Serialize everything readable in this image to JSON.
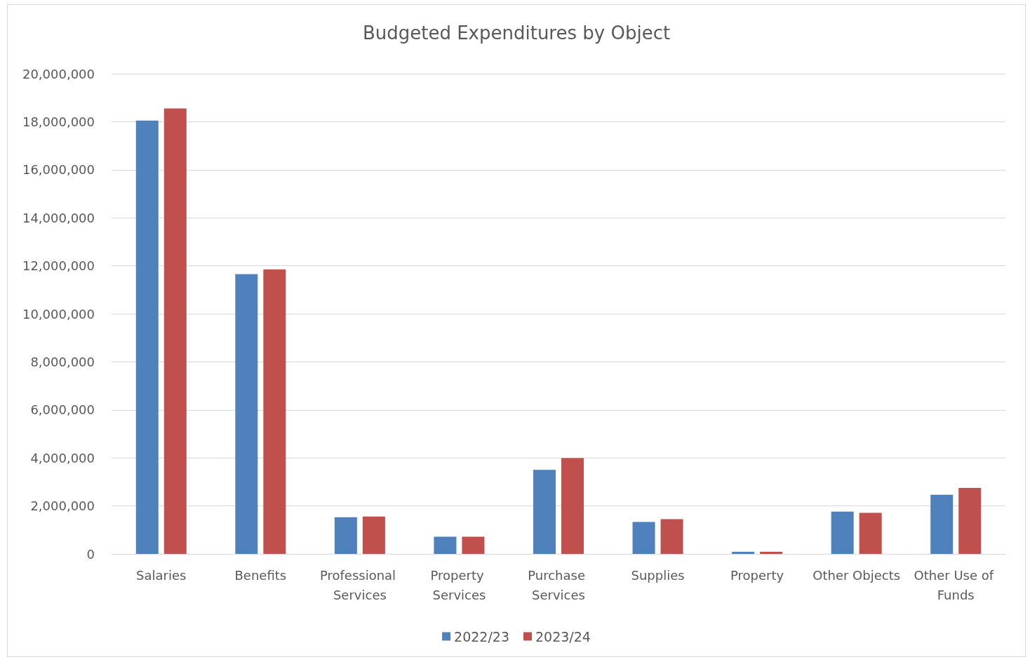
{
  "chart_data": {
    "type": "bar",
    "title": "Budgeted Expenditures by Object",
    "categories": [
      "Salaries",
      "Benefits",
      "Professional Services",
      "Property Services",
      "Purchase Services",
      "Supplies",
      "Property",
      "Other Objects",
      "Other Use of Funds"
    ],
    "series": [
      {
        "name": "2022/23",
        "color": "#4f81bd",
        "values": [
          18050000,
          11650000,
          1530000,
          720000,
          3500000,
          1330000,
          90000,
          1760000,
          2460000
        ]
      },
      {
        "name": "2023/24",
        "color": "#c0504d",
        "values": [
          18550000,
          11850000,
          1560000,
          720000,
          3990000,
          1450000,
          90000,
          1710000,
          2750000
        ]
      }
    ],
    "ylim": [
      0,
      20000000
    ],
    "yticks": [
      0,
      {
        "value": 2000000,
        "label": "2,000,000"
      },
      {
        "value": 4000000,
        "label": "4,000,000"
      },
      {
        "value": 6000000,
        "label": "6,000,000"
      },
      {
        "value": 8000000,
        "label": "8,000,000"
      },
      {
        "value": 10000000,
        "label": "10,000,000"
      },
      {
        "value": 12000000,
        "label": "12,000,000"
      },
      {
        "value": 14000000,
        "label": "14,000,000"
      },
      {
        "value": 16000000,
        "label": "16,000,000"
      },
      {
        "value": 18000000,
        "label": "18,000,000"
      },
      {
        "value": 20000000,
        "label": "20,000,000"
      }
    ],
    "grid": "y",
    "legend": "bottom"
  }
}
